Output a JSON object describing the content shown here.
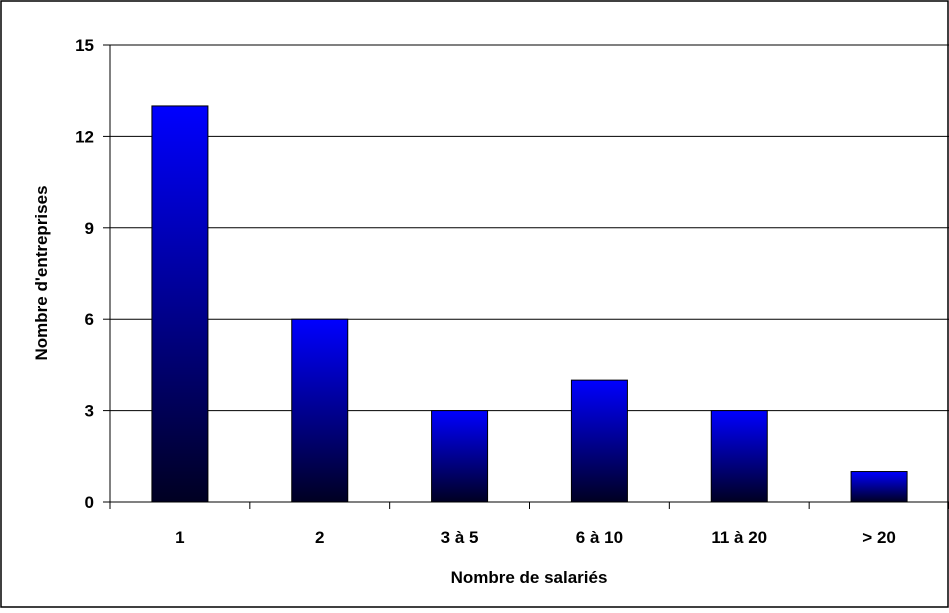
{
  "chart_data": {
    "type": "bar",
    "title": "",
    "xlabel": "Nombre de salariés",
    "ylabel": "Nombre d'entreprises",
    "categories": [
      "1",
      "2",
      "3 à 5",
      "6 à 10",
      "11 à 20",
      "> 20"
    ],
    "values": [
      13,
      6,
      3,
      4,
      3,
      1
    ],
    "ylim": [
      0,
      15
    ],
    "yticks": [
      "0",
      "3",
      "6",
      "9",
      "12",
      "15"
    ],
    "grid": true,
    "legend": "none",
    "colors": {
      "bar_top": "#0000ff",
      "bar_bottom": "#000022",
      "bar_outline": "#000000",
      "gridline": "#000000",
      "frame": "#000000"
    }
  }
}
